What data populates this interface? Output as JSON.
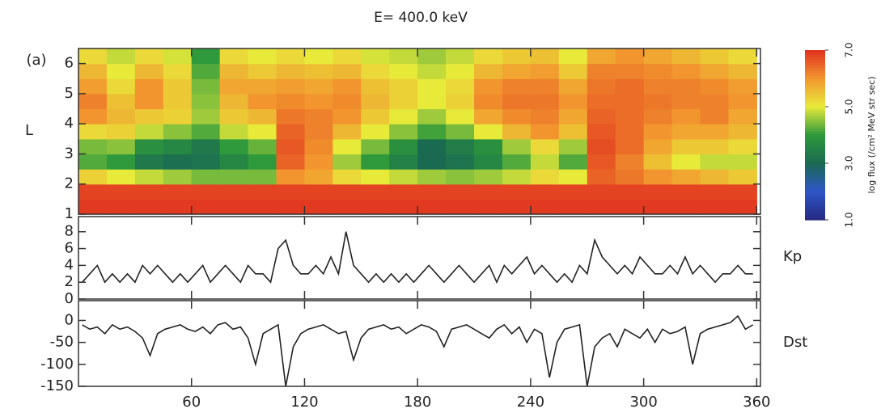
{
  "chart_data": [
    {
      "type": "heatmap",
      "title": "E=  400.0 keV",
      "panel_label": "(a)",
      "y_label": "L",
      "ylim": [
        1,
        6.5
      ],
      "yticks": [
        1,
        2,
        3,
        4,
        5,
        6
      ],
      "x_bins": [
        0,
        15,
        30,
        45,
        60,
        75,
        90,
        105,
        120,
        135,
        150,
        165,
        180,
        195,
        210,
        225,
        240,
        255,
        270,
        285,
        300,
        315,
        330,
        345,
        360
      ],
      "y_bins": [
        1,
        1.5,
        2,
        2.5,
        3,
        3.5,
        4,
        4.5,
        5,
        5.5,
        6,
        6.5
      ],
      "values": [
        [
          6.9,
          6.9,
          6.9,
          6.9,
          6.9,
          6.9,
          6.9,
          6.9,
          6.9,
          6.9,
          6.9,
          6.9,
          6.9,
          6.9,
          6.9,
          6.9,
          6.9,
          6.9,
          6.9,
          6.9,
          6.9,
          6.9,
          6.9,
          6.9
        ],
        [
          6.8,
          6.8,
          6.8,
          6.8,
          6.8,
          6.8,
          6.8,
          6.8,
          6.8,
          6.8,
          6.8,
          6.8,
          6.8,
          6.8,
          6.8,
          6.8,
          6.8,
          6.8,
          6.8,
          6.8,
          6.8,
          6.8,
          6.8,
          6.8
        ],
        [
          5.3,
          5.0,
          4.8,
          4.6,
          4.4,
          4.4,
          4.4,
          6.0,
          5.8,
          5.2,
          5.0,
          4.8,
          4.6,
          4.5,
          4.6,
          4.8,
          5.2,
          5.0,
          6.5,
          6.3,
          6.0,
          5.8,
          5.6,
          5.4
        ],
        [
          4.2,
          4.0,
          3.3,
          3.1,
          3.2,
          3.6,
          4.0,
          6.5,
          6.0,
          4.6,
          4.0,
          3.5,
          3.0,
          3.2,
          3.6,
          4.2,
          4.8,
          4.2,
          6.6,
          6.2,
          5.5,
          5.0,
          4.8,
          4.8
        ],
        [
          4.4,
          4.5,
          3.8,
          3.6,
          3.3,
          4.0,
          4.3,
          6.6,
          6.1,
          5.0,
          4.4,
          3.8,
          3.0,
          3.4,
          3.8,
          4.6,
          5.2,
          4.6,
          6.7,
          6.4,
          5.8,
          5.4,
          5.4,
          5.2
        ],
        [
          5.2,
          5.3,
          4.8,
          4.5,
          4.2,
          4.8,
          5.0,
          6.5,
          6.2,
          5.6,
          5.0,
          4.5,
          4.1,
          4.4,
          5.0,
          5.6,
          6.0,
          5.5,
          6.6,
          6.4,
          6.0,
          5.8,
          5.8,
          5.6
        ],
        [
          6.0,
          5.6,
          5.4,
          5.3,
          4.6,
          5.4,
          5.6,
          6.3,
          6.2,
          6.0,
          5.4,
          5.0,
          4.6,
          5.0,
          5.8,
          6.1,
          6.2,
          5.8,
          6.5,
          6.4,
          6.2,
          6.0,
          6.2,
          5.8
        ],
        [
          6.2,
          5.5,
          6.0,
          5.4,
          4.5,
          5.6,
          6.0,
          6.1,
          6.0,
          6.1,
          5.6,
          5.3,
          5.0,
          5.3,
          6.1,
          6.3,
          6.3,
          6.0,
          6.4,
          6.4,
          6.3,
          6.2,
          6.2,
          6.0
        ],
        [
          5.9,
          5.2,
          6.0,
          5.4,
          4.4,
          5.8,
          5.8,
          5.9,
          5.8,
          6.0,
          5.5,
          5.3,
          5.0,
          5.2,
          6.0,
          6.2,
          6.2,
          5.8,
          6.3,
          6.4,
          6.2,
          6.2,
          6.1,
          5.9
        ],
        [
          5.6,
          5.0,
          5.6,
          5.2,
          4.2,
          5.6,
          5.4,
          5.6,
          5.5,
          5.6,
          5.2,
          5.0,
          4.8,
          5.0,
          5.6,
          5.8,
          5.9,
          5.4,
          6.2,
          6.2,
          6.1,
          6.0,
          5.8,
          5.6
        ],
        [
          5.2,
          4.8,
          5.2,
          4.9,
          4.0,
          5.2,
          5.0,
          5.2,
          5.0,
          5.2,
          4.9,
          4.8,
          4.6,
          4.8,
          5.2,
          5.4,
          5.5,
          5.0,
          5.8,
          6.0,
          5.8,
          5.6,
          5.4,
          5.2
        ]
      ],
      "colormap": [
        "#262a80",
        "#2f55c8",
        "#1a6a52",
        "#2e9a3c",
        "#e8ea3a",
        "#f2952e",
        "#e0301e"
      ],
      "colorbar": {
        "label": "log flux (/cm² MeV str sec)",
        "lim": [
          1,
          7
        ],
        "ticks": [
          {
            "value": 7,
            "label": "7.0"
          },
          {
            "value": 5,
            "label": "5.0"
          },
          {
            "value": 3,
            "label": "3.0"
          },
          {
            "value": 1,
            "label": "1.0"
          }
        ]
      }
    },
    {
      "type": "line",
      "y_label": "Kp",
      "color": "#222222",
      "ylim": [
        0,
        9.8
      ],
      "yticks": [
        0,
        2,
        4,
        6,
        8
      ],
      "x": [
        2,
        6,
        10,
        14,
        18,
        22,
        26,
        30,
        34,
        38,
        42,
        46,
        50,
        54,
        58,
        62,
        66,
        70,
        74,
        78,
        82,
        86,
        90,
        94,
        98,
        102,
        106,
        110,
        114,
        118,
        122,
        126,
        130,
        134,
        138,
        142,
        146,
        150,
        154,
        158,
        162,
        166,
        170,
        174,
        178,
        182,
        186,
        190,
        194,
        198,
        202,
        206,
        210,
        214,
        218,
        222,
        226,
        230,
        234,
        238,
        242,
        246,
        250,
        254,
        258,
        262,
        266,
        270,
        274,
        278,
        282,
        286,
        290,
        294,
        298,
        302,
        306,
        310,
        314,
        318,
        322,
        326,
        330,
        334,
        338,
        342,
        346,
        350,
        354,
        358
      ],
      "values": [
        2,
        3,
        4,
        2,
        3,
        2,
        3,
        2,
        4,
        3,
        4,
        3,
        2,
        3,
        2,
        3,
        4,
        2,
        3,
        4,
        3,
        2,
        4,
        3,
        3,
        2,
        6,
        7,
        4,
        3,
        3,
        4,
        3,
        5,
        3,
        8,
        4,
        3,
        2,
        3,
        2,
        3,
        2,
        3,
        2,
        3,
        4,
        3,
        2,
        3,
        4,
        3,
        2,
        3,
        4,
        2,
        4,
        3,
        4,
        5,
        3,
        4,
        3,
        2,
        3,
        2,
        4,
        3,
        7,
        5,
        4,
        3,
        4,
        3,
        5,
        4,
        3,
        3,
        4,
        3,
        5,
        3,
        4,
        3,
        2,
        3,
        3,
        4,
        3,
        3
      ]
    },
    {
      "type": "line",
      "y_label": "Dst",
      "color": "#222222",
      "ylim": [
        -150,
        45
      ],
      "yticks": [
        0,
        -50,
        -100,
        -150
      ],
      "xlim": [
        0,
        362
      ],
      "xticks": [
        60,
        120,
        180,
        240,
        300,
        360
      ],
      "x": [
        2,
        6,
        10,
        14,
        18,
        22,
        26,
        30,
        34,
        38,
        42,
        46,
        50,
        54,
        58,
        62,
        66,
        70,
        74,
        78,
        82,
        86,
        90,
        94,
        98,
        102,
        106,
        110,
        114,
        118,
        122,
        126,
        130,
        134,
        138,
        142,
        146,
        150,
        154,
        158,
        162,
        166,
        170,
        174,
        178,
        182,
        186,
        190,
        194,
        198,
        202,
        206,
        210,
        214,
        218,
        222,
        226,
        230,
        234,
        238,
        242,
        246,
        250,
        254,
        258,
        262,
        266,
        270,
        274,
        278,
        282,
        286,
        290,
        294,
        298,
        302,
        306,
        310,
        314,
        318,
        322,
        326,
        330,
        334,
        338,
        342,
        346,
        350,
        354,
        358
      ],
      "values": [
        -10,
        -20,
        -15,
        -30,
        -10,
        -20,
        -15,
        -25,
        -40,
        -80,
        -30,
        -20,
        -15,
        -10,
        -20,
        -25,
        -15,
        -30,
        -10,
        -5,
        -20,
        -15,
        -40,
        -100,
        -30,
        -20,
        -10,
        -150,
        -60,
        -30,
        -20,
        -15,
        -10,
        -20,
        -30,
        -25,
        -90,
        -40,
        -20,
        -15,
        -10,
        -20,
        -15,
        -30,
        -20,
        -10,
        -15,
        -25,
        -60,
        -20,
        -15,
        -10,
        -20,
        -30,
        -40,
        -20,
        -10,
        -30,
        -15,
        -50,
        -20,
        -30,
        -130,
        -50,
        -20,
        -15,
        -10,
        -150,
        -60,
        -40,
        -30,
        -60,
        -20,
        -30,
        -40,
        -20,
        -50,
        -20,
        -30,
        -25,
        -15,
        -100,
        -30,
        -20,
        -15,
        -10,
        -5,
        10,
        -20,
        -10
      ]
    }
  ]
}
